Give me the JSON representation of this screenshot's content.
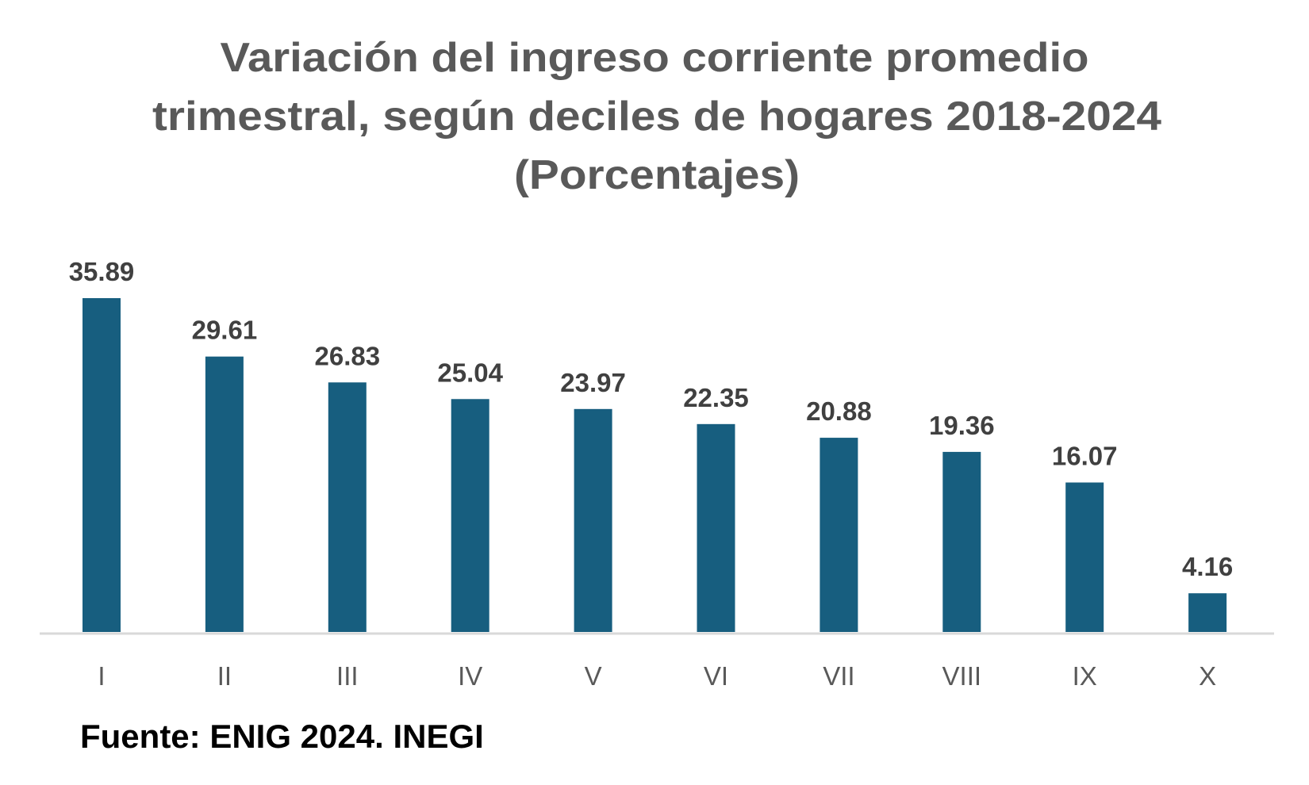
{
  "chart_data": {
    "type": "bar",
    "title": [
      "Variación del ingreso corriente promedio",
      "trimestral, según deciles de hogares 2018-2024",
      "(Porcentajes)"
    ],
    "categories": [
      "I",
      "II",
      "III",
      "IV",
      "V",
      "VI",
      "VII",
      "VIII",
      "IX",
      "X"
    ],
    "values": [
      35.89,
      29.61,
      26.83,
      25.04,
      23.97,
      22.35,
      20.88,
      19.36,
      16.07,
      4.16
    ],
    "value_labels": [
      "35.89",
      "29.61",
      "26.83",
      "25.04",
      "23.97",
      "22.35",
      "20.88",
      "19.36",
      "16.07",
      "4.16"
    ],
    "xlabel": "",
    "ylabel": "",
    "ylim": [
      0,
      35.89
    ],
    "grid": false,
    "legend": "none",
    "bar_color": "#175E7F",
    "axis_color": "#D9D9D9",
    "source": "Fuente: ENIG 2024. INEGI"
  }
}
